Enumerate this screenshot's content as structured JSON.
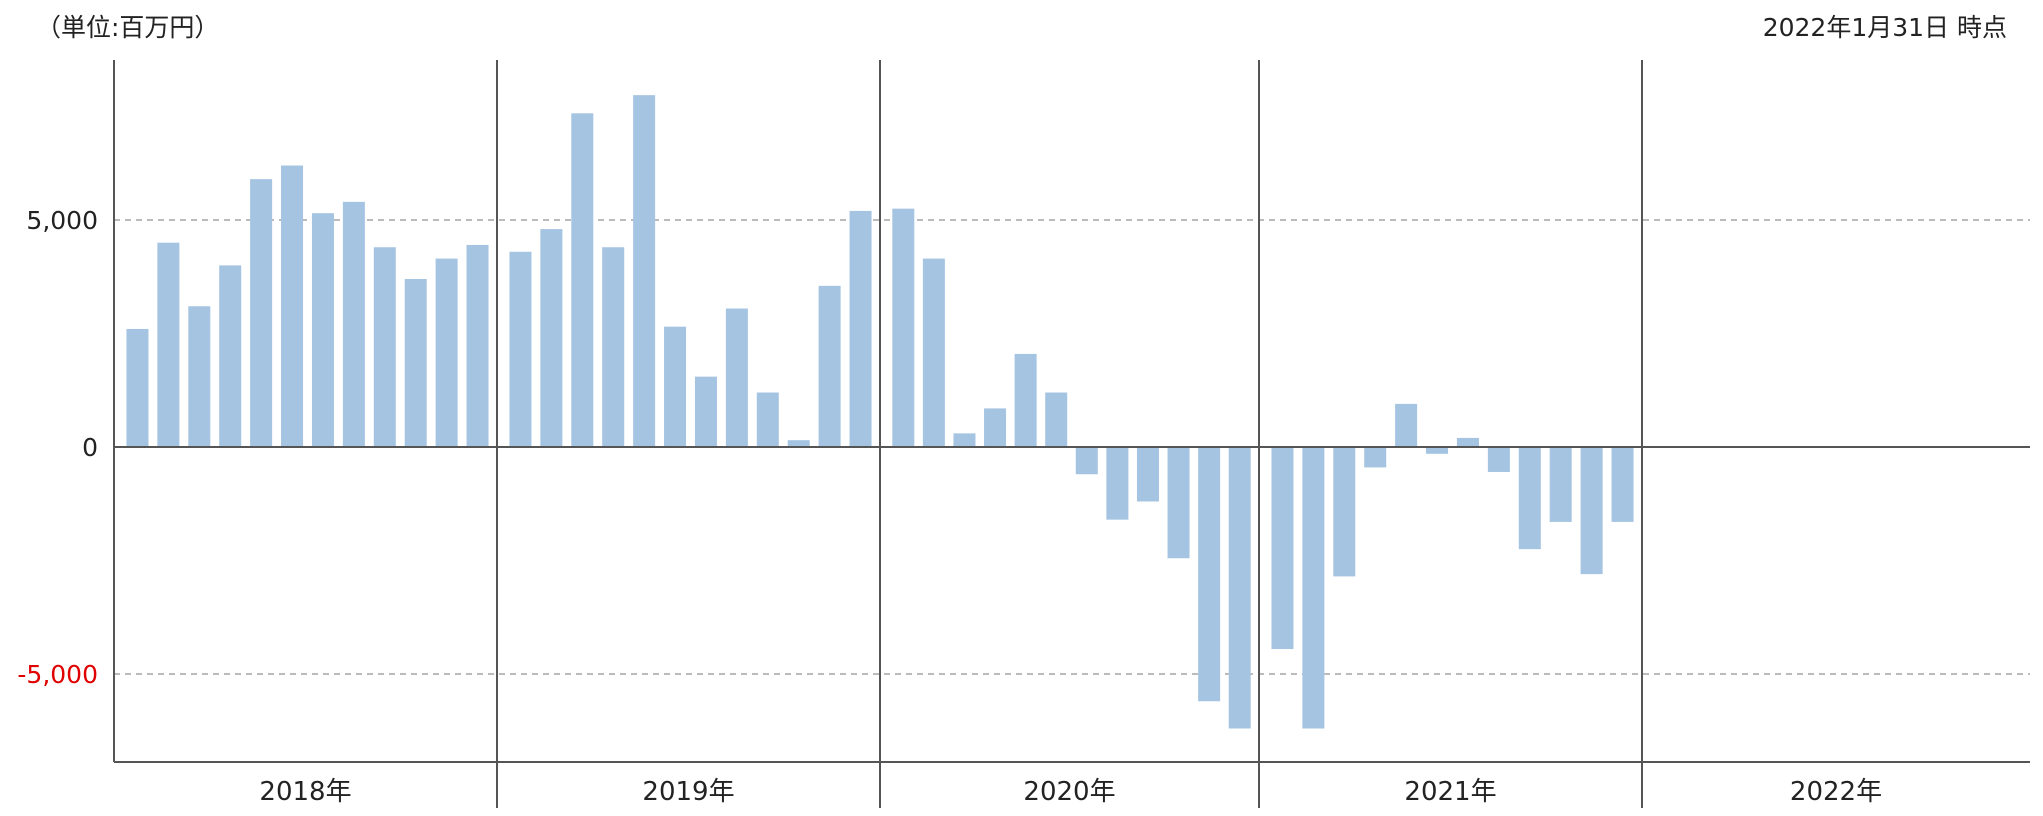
{
  "header": {
    "unit_note": "（単位:百万円）",
    "date_note": "2022年1月31日 時点"
  },
  "colors": {
    "bar": "#a4c4e2",
    "axis": "#555555",
    "grid": "#bbbbbb",
    "negative_tick": "#e00000"
  },
  "chart_data": {
    "type": "bar",
    "y_ticks": [
      {
        "value": 5000,
        "label": "5,000"
      },
      {
        "value": 0,
        "label": "0"
      },
      {
        "value": -5000,
        "label": "-5,000"
      }
    ],
    "ylim": [
      -6900,
      8700
    ],
    "grid": "dashed lines at 5,000 and -5,000",
    "years": [
      {
        "label": "2018年",
        "values": [
          2600,
          4500,
          3100,
          4000,
          5900,
          6200,
          5150,
          5400,
          4400,
          3700,
          4150,
          4450
        ]
      },
      {
        "label": "2019年",
        "values": [
          4300,
          4800,
          7350,
          4400,
          7750,
          2650,
          1550,
          3050,
          1200,
          150,
          3550,
          5200
        ]
      },
      {
        "label": "2020年",
        "values": [
          5250,
          4150,
          300,
          850,
          2050,
          1200,
          -600,
          -1600,
          -1200,
          -2450,
          -5600,
          -6200
        ]
      },
      {
        "label": "2021年",
        "values": [
          -4450,
          -6200,
          -2850,
          -450,
          950,
          -150,
          200,
          -550,
          -2250,
          -1650,
          -2800,
          -1650
        ]
      },
      {
        "label": "2022年",
        "values": []
      }
    ]
  }
}
